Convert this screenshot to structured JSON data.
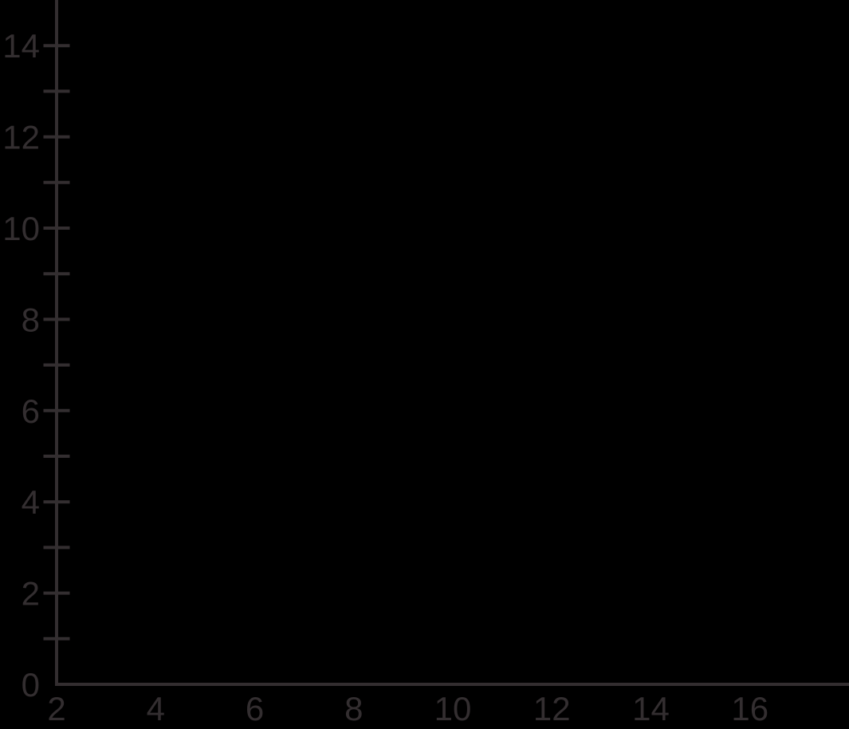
{
  "page": {
    "background": "#000000",
    "title": ""
  },
  "chart_data": {
    "type": "scatter",
    "title": "",
    "description": "Empty coordinate plane (blank axes, no data plotted)",
    "background": "#000000",
    "axis_color": "#332E30",
    "grid": false,
    "legend": null,
    "series": [],
    "x_axis": {
      "label": "",
      "min": 2,
      "max": 18,
      "axis_line_visible": true,
      "tick_marks_visible": false,
      "labeled_tick_values": [
        2,
        4,
        6,
        8,
        10,
        12,
        14,
        16
      ],
      "tick_labels": [
        "2",
        "4",
        "6",
        "8",
        "10",
        "12",
        "14",
        "16"
      ]
    },
    "y_axis": {
      "label": "",
      "min": 0,
      "max": 15,
      "axis_line_visible": true,
      "tick_marks_visible": true,
      "all_tick_values": [
        1,
        2,
        3,
        4,
        5,
        6,
        7,
        8,
        9,
        10,
        11,
        12,
        13,
        14
      ],
      "labeled_tick_values": [
        0,
        2,
        4,
        6,
        8,
        10,
        12,
        14
      ],
      "tick_labels": [
        "0",
        "2",
        "4",
        "6",
        "8",
        "10",
        "12",
        "14"
      ]
    }
  }
}
